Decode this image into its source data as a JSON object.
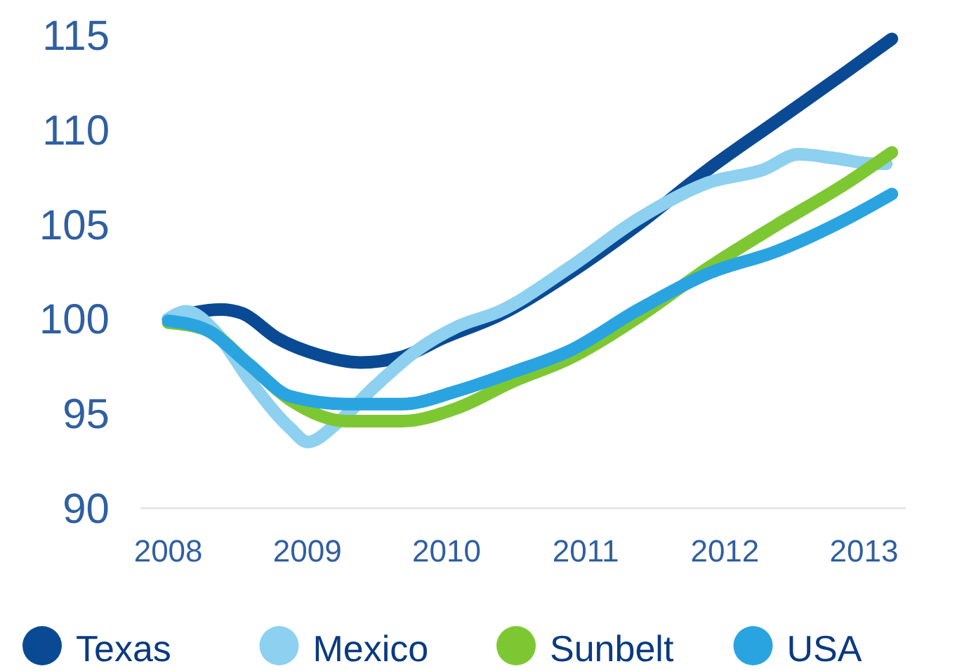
{
  "chart_data": {
    "type": "line",
    "xlim": [
      2007.8,
      2013.3
    ],
    "xticks": [
      2008,
      2009,
      2010,
      2011,
      2012,
      2013
    ],
    "ylim": [
      90,
      115
    ],
    "yticks": [
      90,
      95,
      100,
      105,
      110,
      115
    ],
    "legend": "bottom",
    "series": [
      {
        "name": "Texas",
        "color": "#0a4a94",
        "x": [
          2008,
          2008.38,
          2008.53,
          2008.78,
          2009.08,
          2009.38,
          2009.68,
          2009.98,
          2010.38,
          2010.88,
          2011.38,
          2011.88,
          2012.38,
          2012.88,
          2013.2
        ],
        "values": [
          100,
          100.5,
          100.3,
          99,
          98.1,
          97.7,
          98,
          99,
          100.2,
          102.4,
          105,
          107.9,
          110.5,
          113.1,
          114.8
        ]
      },
      {
        "name": "Mexico",
        "color": "#8dd0f0",
        "x": [
          2008,
          2008.13,
          2008.33,
          2008.58,
          2008.88,
          2009,
          2009.23,
          2009.48,
          2009.78,
          2010.08,
          2010.38,
          2010.88,
          2011.38,
          2011.88,
          2012.28,
          2012.53,
          2012.78,
          2013.08,
          2013.16
        ],
        "values": [
          100,
          100.4,
          99.4,
          96.8,
          94.2,
          93.5,
          94.6,
          96.4,
          98.3,
          99.6,
          100.4,
          102.7,
          105.3,
          107.2,
          107.9,
          108.7,
          108.5,
          108.2,
          108.2
        ]
      },
      {
        "name": "Sunbelt",
        "color": "#7dc832",
        "x": [
          2008,
          2008.28,
          2008.58,
          2008.88,
          2009.28,
          2009.68,
          2010.08,
          2010.48,
          2010.88,
          2011.38,
          2011.88,
          2012.38,
          2012.88,
          2013.2
        ],
        "values": [
          99.8,
          99.4,
          97.6,
          95.7,
          94.6,
          94.6,
          95.3,
          96.7,
          97.9,
          100.1,
          102.7,
          105,
          107.2,
          108.8
        ]
      },
      {
        "name": "USA",
        "color": "#2aa4e0",
        "x": [
          2008,
          2008.28,
          2008.58,
          2008.88,
          2009.28,
          2009.68,
          2010.08,
          2010.48,
          2010.88,
          2011.38,
          2011.88,
          2012.38,
          2012.88,
          2013.2
        ],
        "values": [
          99.9,
          99.4,
          97.6,
          95.9,
          95.5,
          95.5,
          96.2,
          97.2,
          98.3,
          100.5,
          102.4,
          103.6,
          105.3,
          106.6
        ]
      }
    ]
  }
}
